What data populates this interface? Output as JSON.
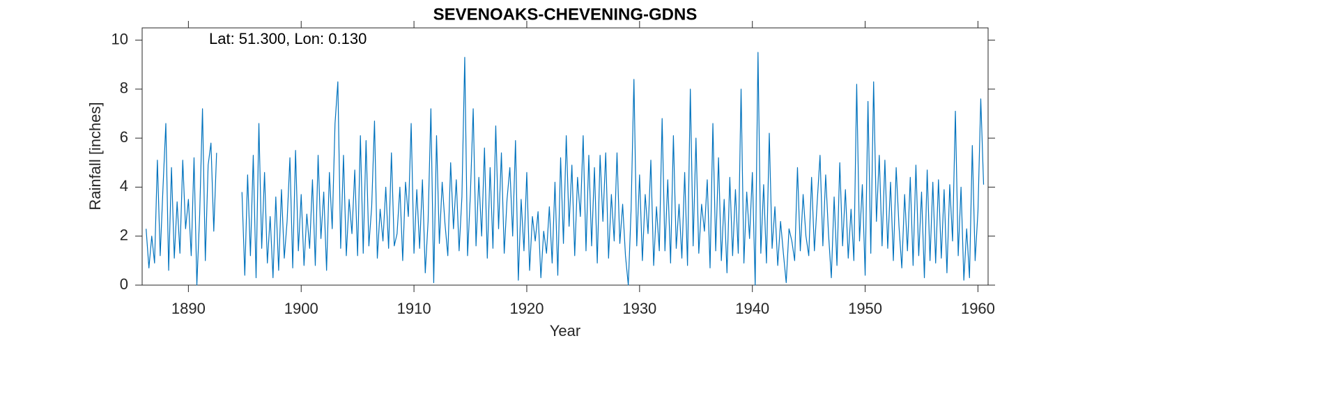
{
  "chart_data": {
    "type": "line",
    "title": "SEVENOAKS-CHEVENING-GDNS",
    "annotation": "Lat: 51.300, Lon: 0.130",
    "x_label": "Year",
    "y_label": "Rainfall [inches]",
    "color": "#0072bd",
    "xlim": [
      1885.9,
      1960.9
    ],
    "ylim": [
      0,
      10.5
    ],
    "xticks": [
      1890,
      1900,
      1910,
      1920,
      1930,
      1940,
      1950,
      1960
    ],
    "yticks": [
      0,
      2,
      4,
      6,
      8,
      10
    ],
    "x": [
      1886.25,
      1886.5,
      1886.75,
      1887,
      1887.25,
      1887.5,
      1887.75,
      1888,
      1888.25,
      1888.5,
      1888.75,
      1889,
      1889.25,
      1889.5,
      1889.75,
      1890,
      1890.25,
      1890.5,
      1890.75,
      1891,
      1891.25,
      1891.5,
      1891.75,
      1892,
      1892.25,
      1892.5,
      1893.5,
      1894.75,
      1895,
      1895.25,
      1895.5,
      1895.75,
      1896,
      1896.25,
      1896.5,
      1896.75,
      1897,
      1897.25,
      1897.5,
      1897.75,
      1898,
      1898.25,
      1898.5,
      1898.75,
      1899,
      1899.25,
      1899.5,
      1899.75,
      1900,
      1900.25,
      1900.5,
      1900.75,
      1901,
      1901.25,
      1901.5,
      1901.75,
      1902,
      1902.25,
      1902.5,
      1902.75,
      1903,
      1903.25,
      1903.5,
      1903.75,
      1904,
      1904.25,
      1904.5,
      1904.75,
      1905,
      1905.25,
      1905.5,
      1905.75,
      1906,
      1906.25,
      1906.5,
      1906.75,
      1907,
      1907.25,
      1907.5,
      1907.75,
      1908,
      1908.25,
      1908.5,
      1908.75,
      1909,
      1909.25,
      1909.5,
      1909.75,
      1910,
      1910.25,
      1910.5,
      1910.75,
      1911,
      1911.25,
      1911.5,
      1911.75,
      1912,
      1912.25,
      1912.5,
      1912.75,
      1913,
      1913.25,
      1913.5,
      1913.75,
      1914,
      1914.25,
      1914.5,
      1914.75,
      1915,
      1915.25,
      1915.5,
      1915.75,
      1916,
      1916.25,
      1916.5,
      1916.75,
      1917,
      1917.25,
      1917.5,
      1917.75,
      1918,
      1918.25,
      1918.5,
      1918.75,
      1919,
      1919.25,
      1919.5,
      1919.75,
      1920,
      1920.25,
      1920.5,
      1920.75,
      1921,
      1921.25,
      1921.5,
      1921.75,
      1922,
      1922.25,
      1922.5,
      1922.75,
      1923,
      1923.25,
      1923.5,
      1923.75,
      1924,
      1924.25,
      1924.5,
      1924.75,
      1925,
      1925.25,
      1925.5,
      1925.75,
      1926,
      1926.25,
      1926.5,
      1926.75,
      1927,
      1927.25,
      1927.5,
      1927.75,
      1928,
      1928.25,
      1928.5,
      1928.75,
      1929,
      1929.25,
      1929.5,
      1929.75,
      1930,
      1930.25,
      1930.5,
      1930.75,
      1931,
      1931.25,
      1931.5,
      1931.75,
      1932,
      1932.25,
      1932.5,
      1932.75,
      1933,
      1933.25,
      1933.5,
      1933.75,
      1934,
      1934.25,
      1934.5,
      1934.75,
      1935,
      1935.25,
      1935.5,
      1935.75,
      1936,
      1936.25,
      1936.5,
      1936.75,
      1937,
      1937.25,
      1937.5,
      1937.75,
      1938,
      1938.25,
      1938.5,
      1938.75,
      1939,
      1939.25,
      1939.5,
      1939.75,
      1940,
      1940.25,
      1940.5,
      1940.75,
      1941,
      1941.25,
      1941.5,
      1941.75,
      1942,
      1942.25,
      1942.5,
      1942.75,
      1943,
      1943.25,
      1943.5,
      1943.75,
      1944,
      1944.25,
      1944.5,
      1944.75,
      1945,
      1945.25,
      1945.5,
      1945.75,
      1946,
      1946.25,
      1946.5,
      1946.75,
      1947,
      1947.25,
      1947.5,
      1947.75,
      1948,
      1948.25,
      1948.5,
      1948.75,
      1949,
      1949.25,
      1949.5,
      1949.75,
      1950,
      1950.25,
      1950.5,
      1950.75,
      1951,
      1951.25,
      1951.5,
      1951.75,
      1952,
      1952.25,
      1952.5,
      1952.75,
      1953,
      1953.25,
      1953.5,
      1953.75,
      1954,
      1954.25,
      1954.5,
      1954.75,
      1955,
      1955.25,
      1955.5,
      1955.75,
      1956,
      1956.25,
      1956.5,
      1956.75,
      1957,
      1957.25,
      1957.5,
      1957.75,
      1958,
      1958.25,
      1958.5,
      1958.75,
      1959,
      1959.25,
      1959.5,
      1959.75,
      1960,
      1960.25,
      1960.5
    ],
    "values": [
      2.3,
      0.7,
      2.0,
      0.9,
      5.1,
      1.2,
      4.0,
      6.6,
      0.6,
      4.8,
      1.1,
      3.4,
      1.3,
      5.1,
      2.3,
      3.5,
      1.2,
      5.2,
      0.0,
      2.9,
      7.2,
      1.0,
      4.9,
      5.8,
      2.2,
      5.4,
      null,
      3.8,
      0.4,
      4.5,
      1.2,
      5.3,
      0.3,
      6.6,
      1.5,
      4.6,
      0.9,
      2.8,
      0.3,
      3.6,
      0.6,
      3.9,
      1.1,
      2.6,
      5.2,
      0.7,
      5.5,
      1.4,
      3.7,
      0.8,
      2.9,
      1.5,
      4.3,
      0.8,
      5.3,
      1.9,
      3.8,
      0.6,
      4.6,
      2.3,
      6.6,
      8.3,
      1.5,
      5.3,
      1.2,
      3.5,
      2.1,
      4.7,
      1.2,
      6.1,
      1.3,
      5.9,
      1.6,
      3.2,
      6.7,
      1.1,
      3.1,
      1.8,
      4.0,
      1.5,
      5.4,
      1.6,
      2.1,
      4.0,
      1.0,
      4.2,
      2.8,
      6.6,
      1.3,
      3.9,
      1.5,
      4.3,
      0.5,
      2.6,
      7.2,
      0.1,
      6.1,
      1.7,
      4.2,
      2.5,
      1.2,
      5.0,
      2.3,
      4.3,
      1.4,
      3.6,
      9.3,
      1.2,
      3.7,
      7.2,
      1.6,
      4.4,
      2.0,
      5.6,
      1.1,
      4.8,
      1.5,
      6.5,
      2.3,
      5.4,
      1.3,
      3.5,
      4.8,
      2.0,
      5.9,
      0.2,
      3.5,
      1.4,
      4.6,
      0.6,
      2.8,
      1.8,
      3.0,
      0.3,
      2.2,
      1.3,
      3.2,
      0.9,
      4.2,
      0.4,
      5.2,
      1.7,
      6.1,
      2.4,
      4.9,
      1.2,
      4.4,
      2.8,
      6.1,
      1.4,
      5.3,
      1.6,
      4.8,
      0.9,
      5.3,
      2.6,
      5.4,
      1.1,
      3.7,
      1.8,
      5.4,
      1.7,
      3.3,
      1.2,
      0.0,
      3.1,
      8.4,
      1.6,
      4.5,
      1.0,
      3.7,
      2.1,
      5.1,
      0.8,
      3.2,
      1.4,
      6.8,
      1.4,
      4.3,
      0.9,
      6.1,
      1.5,
      3.3,
      1.1,
      4.6,
      0.8,
      8.0,
      1.6,
      6.0,
      1.3,
      3.3,
      2.2,
      4.3,
      0.7,
      6.6,
      1.4,
      5.2,
      1.0,
      3.5,
      0.5,
      4.4,
      1.2,
      3.9,
      1.3,
      8.0,
      0.9,
      3.8,
      1.9,
      4.6,
      0.0,
      9.5,
      1.3,
      4.1,
      0.9,
      6.2,
      1.5,
      3.2,
      0.8,
      2.6,
      1.3,
      0.1,
      2.3,
      1.8,
      1.0,
      4.8,
      1.4,
      3.7,
      2.0,
      1.2,
      4.4,
      1.4,
      3.4,
      5.3,
      1.6,
      4.5,
      2.1,
      0.3,
      3.6,
      0.8,
      5.0,
      1.6,
      3.9,
      1.1,
      3.1,
      1.0,
      8.2,
      1.8,
      4.1,
      0.4,
      7.5,
      1.3,
      8.3,
      2.6,
      5.3,
      1.6,
      5.1,
      1.5,
      4.2,
      1.0,
      4.8,
      2.4,
      0.7,
      3.7,
      1.4,
      4.4,
      0.8,
      4.9,
      1.2,
      3.8,
      0.3,
      4.7,
      1.0,
      4.2,
      0.9,
      4.3,
      1.1,
      3.9,
      0.5,
      4.1,
      1.8,
      7.1,
      1.2,
      4.0,
      0.2,
      2.3,
      0.3,
      5.7,
      1.0,
      3.0,
      7.6,
      4.1
    ]
  }
}
